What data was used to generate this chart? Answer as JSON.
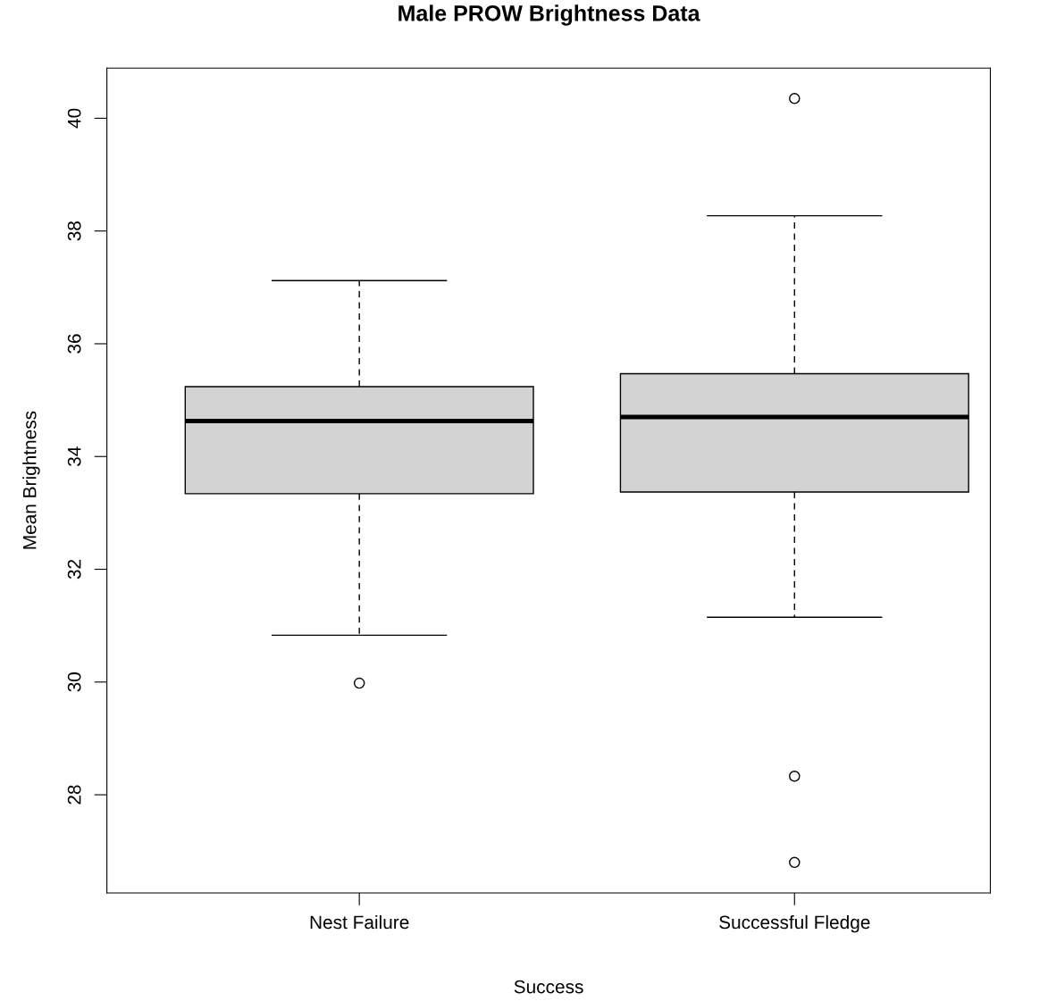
{
  "chart_data": {
    "type": "box",
    "title": "Male PROW Brightness Data",
    "xlabel": "Success",
    "ylabel": "Mean Brightness",
    "categories": [
      "Nest Failure",
      "Successful Fledge"
    ],
    "boxes": [
      {
        "low": 30.83,
        "q1": 33.34,
        "median": 34.63,
        "q3": 35.24,
        "high": 37.12,
        "outliers": [
          29.98
        ]
      },
      {
        "low": 31.15,
        "q1": 33.37,
        "median": 34.7,
        "q3": 35.47,
        "high": 38.27,
        "outliers": [
          40.35,
          28.33,
          26.8
        ]
      }
    ],
    "color": "#d3d3d3",
    "ylim": [
      26.26,
      40.89
    ],
    "yticks": [
      28,
      30,
      32,
      34,
      36,
      38,
      40
    ],
    "grid": false
  }
}
